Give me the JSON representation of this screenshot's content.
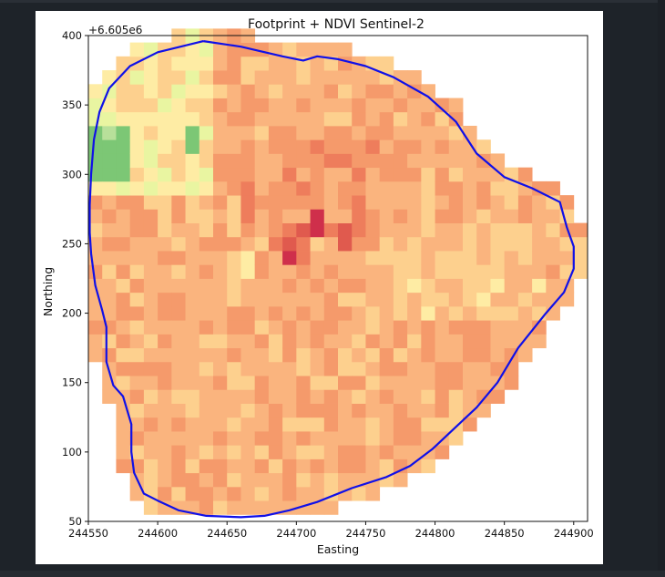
{
  "chart_data": {
    "type": "heatmap",
    "title": "Footprint + NDVI Sentinel-2",
    "xlabel": "Easting",
    "ylabel": "Northing",
    "y_offset_label": "+6.605e6",
    "xlim": [
      244550,
      244910
    ],
    "ylim": [
      50,
      400
    ],
    "xticks": [
      {
        "value": 244550,
        "label": "244550"
      },
      {
        "value": 244600,
        "label": "244600"
      },
      {
        "value": 244650,
        "label": "244650"
      },
      {
        "value": 244700,
        "label": "244700"
      },
      {
        "value": 244750,
        "label": "244750"
      },
      {
        "value": 244800,
        "label": "244800"
      },
      {
        "value": 244850,
        "label": "244850"
      },
      {
        "value": 244900,
        "label": "244900"
      }
    ],
    "yticks": [
      {
        "value": 50,
        "label": "50"
      },
      {
        "value": 100,
        "label": "100"
      },
      {
        "value": 150,
        "label": "150"
      },
      {
        "value": 200,
        "label": "200"
      },
      {
        "value": 250,
        "label": "250"
      },
      {
        "value": 300,
        "label": "300"
      },
      {
        "value": 350,
        "label": "350"
      },
      {
        "value": 400,
        "label": "400"
      }
    ],
    "colormap": "Spectral",
    "footprint_color": "#1010e8",
    "footprint": [
      [
        244633,
        396
      ],
      [
        244600,
        388
      ],
      [
        244580,
        378
      ],
      [
        244565,
        362
      ],
      [
        244558,
        345
      ],
      [
        244554,
        325
      ],
      [
        244552,
        300
      ],
      [
        244551,
        278
      ],
      [
        244551,
        258
      ],
      [
        244552,
        243
      ],
      [
        244555,
        220
      ],
      [
        244560,
        202
      ],
      [
        244563,
        190
      ],
      [
        244563,
        180
      ],
      [
        244563,
        165
      ],
      [
        244568,
        148
      ],
      [
        244575,
        140
      ],
      [
        244581,
        120
      ],
      [
        244581,
        100
      ],
      [
        244583,
        85
      ],
      [
        244590,
        70
      ],
      [
        244600,
        65
      ],
      [
        244615,
        58
      ],
      [
        244635,
        54
      ],
      [
        244660,
        53
      ],
      [
        244677,
        54
      ],
      [
        244695,
        58
      ],
      [
        244715,
        64
      ],
      [
        244740,
        74
      ],
      [
        244765,
        82
      ],
      [
        244782,
        90
      ],
      [
        244798,
        102
      ],
      [
        244815,
        118
      ],
      [
        244830,
        132
      ],
      [
        244845,
        150
      ],
      [
        244860,
        175
      ],
      [
        244880,
        200
      ],
      [
        244893,
        215
      ],
      [
        244900,
        232
      ],
      [
        244900,
        248
      ],
      [
        244895,
        262
      ],
      [
        244890,
        280
      ],
      [
        244870,
        290
      ],
      [
        244850,
        298
      ],
      [
        244830,
        315
      ],
      [
        244815,
        338
      ],
      [
        244795,
        356
      ],
      [
        244770,
        370
      ],
      [
        244750,
        378
      ],
      [
        244730,
        383
      ],
      [
        244715,
        385
      ],
      [
        244705,
        382
      ],
      [
        244690,
        385
      ],
      [
        244660,
        392
      ],
      [
        244633,
        396
      ]
    ],
    "ndvi_grid": {
      "x0": 244550,
      "y0": 55,
      "cell": 10,
      "nx": 36,
      "ny": 36
    },
    "high_spots": [
      [
        244560,
        320
      ],
      [
        244570,
        315
      ],
      [
        244625,
        325
      ],
      [
        244660,
        236
      ],
      [
        244795,
        200
      ]
    ],
    "low_spots": [
      [
        244692,
        248
      ],
      [
        244702,
        242
      ],
      [
        244712,
        262
      ],
      [
        244733,
        255
      ]
    ]
  }
}
